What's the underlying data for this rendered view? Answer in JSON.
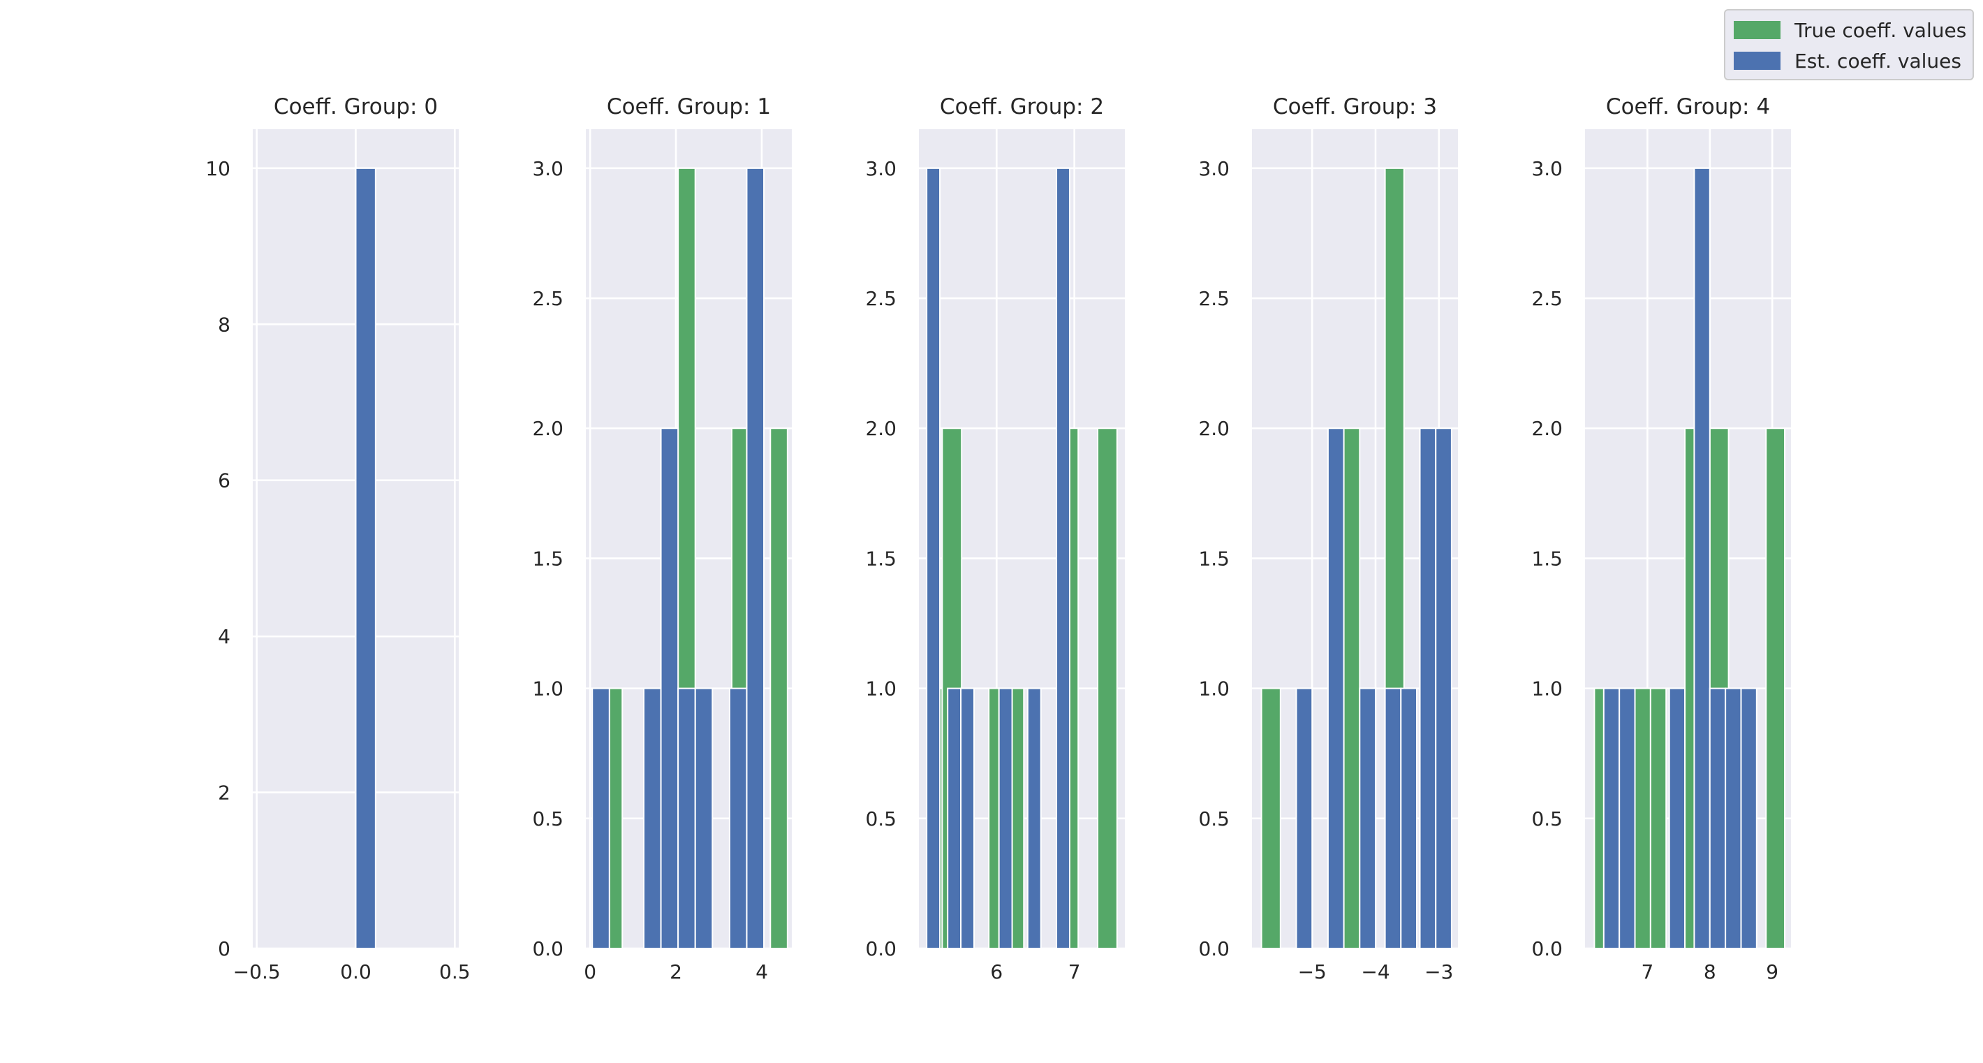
{
  "colors": {
    "true": "#55a868",
    "est": "#4c72b0",
    "background": "#eaeaf2"
  },
  "legend": {
    "placement": "top-right",
    "true_label": "True coeff. values",
    "est_label": "Est. coeff. values"
  },
  "chart_data": [
    {
      "type": "bar",
      "title": "Coeff. Group: 0",
      "xlabel": "",
      "ylabel": "",
      "xlim": [
        -0.52,
        0.52
      ],
      "ylim": [
        0,
        10.5
      ],
      "xticks": [
        -0.5,
        0.0,
        0.5
      ],
      "xtick_labels": [
        "−0.5",
        "0.0",
        "0.5"
      ],
      "yticks": [
        0,
        2,
        4,
        6,
        8,
        10
      ],
      "ytick_labels": [
        "0",
        "2",
        "4",
        "6",
        "8",
        "10"
      ],
      "grid": true,
      "series": [
        {
          "name": "True coeff. values",
          "color_key": "true",
          "bins": [
            {
              "x0": 0.0,
              "x1": 0.1,
              "value": 10
            }
          ]
        },
        {
          "name": "Est. coeff. values",
          "color_key": "est",
          "bins": [
            {
              "x0": 0.0,
              "x1": 0.1,
              "value": 10
            }
          ]
        }
      ]
    },
    {
      "type": "bar",
      "title": "Coeff. Group: 1",
      "xlabel": "",
      "ylabel": "",
      "xlim": [
        -0.1,
        4.7
      ],
      "ylim": [
        0,
        3.15
      ],
      "xticks": [
        0,
        2,
        4
      ],
      "xtick_labels": [
        "0",
        "2",
        "4"
      ],
      "yticks": [
        0.0,
        0.5,
        1.0,
        1.5,
        2.0,
        2.5,
        3.0
      ],
      "ytick_labels": [
        "0.0",
        "0.5",
        "1.0",
        "1.5",
        "2.0",
        "2.5",
        "3.0"
      ],
      "grid": true,
      "series": [
        {
          "name": "True coeff. values",
          "color_key": "true",
          "bins": [
            {
              "x0": 0.45,
              "x1": 0.75,
              "value": 1
            },
            {
              "x0": 2.05,
              "x1": 2.45,
              "value": 3
            },
            {
              "x0": 3.3,
              "x1": 3.65,
              "value": 2
            },
            {
              "x0": 4.2,
              "x1": 4.6,
              "value": 2
            }
          ]
        },
        {
          "name": "Est. coeff. values",
          "color_key": "est",
          "bins": [
            {
              "x0": 0.05,
              "x1": 0.45,
              "value": 1
            },
            {
              "x0": 1.25,
              "x1": 1.65,
              "value": 1
            },
            {
              "x0": 1.65,
              "x1": 2.05,
              "value": 2
            },
            {
              "x0": 2.05,
              "x1": 2.45,
              "value": 1
            },
            {
              "x0": 2.45,
              "x1": 2.85,
              "value": 1
            },
            {
              "x0": 3.25,
              "x1": 3.65,
              "value": 1
            },
            {
              "x0": 3.65,
              "x1": 4.05,
              "value": 3
            }
          ]
        }
      ]
    },
    {
      "type": "bar",
      "title": "Coeff. Group: 2",
      "xlabel": "",
      "ylabel": "",
      "xlim": [
        5.0,
        7.65
      ],
      "ylim": [
        0,
        3.15
      ],
      "xticks": [
        6,
        7
      ],
      "xtick_labels": [
        "6",
        "7"
      ],
      "yticks": [
        0.0,
        0.5,
        1.0,
        1.5,
        2.0,
        2.5,
        3.0
      ],
      "ytick_labels": [
        "0.0",
        "0.5",
        "1.0",
        "1.5",
        "2.0",
        "2.5",
        "3.0"
      ],
      "grid": true,
      "series": [
        {
          "name": "True coeff. values",
          "color_key": "true",
          "bins": [
            {
              "x0": 5.1,
              "x1": 5.3,
              "value": 1
            },
            {
              "x0": 5.3,
              "x1": 5.55,
              "value": 2
            },
            {
              "x0": 5.9,
              "x1": 6.1,
              "value": 1
            },
            {
              "x0": 6.1,
              "x1": 6.35,
              "value": 1
            },
            {
              "x0": 6.85,
              "x1": 7.05,
              "value": 2
            },
            {
              "x0": 7.3,
              "x1": 7.55,
              "value": 2
            }
          ]
        },
        {
          "name": "Est. coeff. values",
          "color_key": "est",
          "bins": [
            {
              "x0": 5.1,
              "x1": 5.27,
              "value": 3
            },
            {
              "x0": 5.37,
              "x1": 5.54,
              "value": 1
            },
            {
              "x0": 5.54,
              "x1": 5.71,
              "value": 1
            },
            {
              "x0": 6.03,
              "x1": 6.2,
              "value": 1
            },
            {
              "x0": 6.4,
              "x1": 6.57,
              "value": 1
            },
            {
              "x0": 6.77,
              "x1": 6.94,
              "value": 3
            }
          ]
        }
      ]
    },
    {
      "type": "bar",
      "title": "Coeff. Group: 3",
      "xlabel": "",
      "ylabel": "",
      "xlim": [
        -5.95,
        -2.7
      ],
      "ylim": [
        0,
        3.15
      ],
      "xticks": [
        -5,
        -4,
        -3
      ],
      "xtick_labels": [
        "−5",
        "−4",
        "−3"
      ],
      "yticks": [
        0.0,
        0.5,
        1.0,
        1.5,
        2.0,
        2.5,
        3.0
      ],
      "ytick_labels": [
        "0.0",
        "0.5",
        "1.0",
        "1.5",
        "2.0",
        "2.5",
        "3.0"
      ],
      "grid": true,
      "series": [
        {
          "name": "True coeff. values",
          "color_key": "true",
          "bins": [
            {
              "x0": -5.8,
              "x1": -5.5,
              "value": 1
            },
            {
              "x0": -4.55,
              "x1": -4.25,
              "value": 2
            },
            {
              "x0": -4.25,
              "x1": -4.1,
              "value": 1
            },
            {
              "x0": -3.85,
              "x1": -3.55,
              "value": 3
            }
          ]
        },
        {
          "name": "Est. coeff. values",
          "color_key": "est",
          "bins": [
            {
              "x0": -5.25,
              "x1": -5.0,
              "value": 1
            },
            {
              "x0": -4.75,
              "x1": -4.5,
              "value": 2
            },
            {
              "x0": -4.25,
              "x1": -4.0,
              "value": 1
            },
            {
              "x0": -3.85,
              "x1": -3.6,
              "value": 1
            },
            {
              "x0": -3.6,
              "x1": -3.35,
              "value": 1
            },
            {
              "x0": -3.3,
              "x1": -3.05,
              "value": 2
            },
            {
              "x0": -3.05,
              "x1": -2.8,
              "value": 2
            }
          ]
        }
      ]
    },
    {
      "type": "bar",
      "title": "Coeff. Group: 4",
      "xlabel": "",
      "ylabel": "",
      "xlim": [
        6.0,
        9.3
      ],
      "ylim": [
        0,
        3.15
      ],
      "xticks": [
        7,
        8,
        9
      ],
      "xtick_labels": [
        "7",
        "8",
        "9"
      ],
      "yticks": [
        0.0,
        0.5,
        1.0,
        1.5,
        2.0,
        2.5,
        3.0
      ],
      "ytick_labels": [
        "0.0",
        "0.5",
        "1.0",
        "1.5",
        "2.0",
        "2.5",
        "3.0"
      ],
      "grid": true,
      "series": [
        {
          "name": "True coeff. values",
          "color_key": "true",
          "bins": [
            {
              "x0": 6.15,
              "x1": 6.45,
              "value": 1
            },
            {
              "x0": 6.8,
              "x1": 7.05,
              "value": 1
            },
            {
              "x0": 7.05,
              "x1": 7.3,
              "value": 1
            },
            {
              "x0": 7.6,
              "x1": 7.75,
              "value": 2
            },
            {
              "x0": 8.0,
              "x1": 8.3,
              "value": 2
            },
            {
              "x0": 8.9,
              "x1": 9.2,
              "value": 2
            }
          ]
        },
        {
          "name": "Est. coeff. values",
          "color_key": "est",
          "bins": [
            {
              "x0": 6.3,
              "x1": 6.55,
              "value": 1
            },
            {
              "x0": 6.55,
              "x1": 6.8,
              "value": 1
            },
            {
              "x0": 7.35,
              "x1": 7.6,
              "value": 1
            },
            {
              "x0": 7.75,
              "x1": 8.0,
              "value": 3
            },
            {
              "x0": 8.0,
              "x1": 8.25,
              "value": 1
            },
            {
              "x0": 8.25,
              "x1": 8.5,
              "value": 1
            },
            {
              "x0": 8.5,
              "x1": 8.75,
              "value": 1
            }
          ]
        }
      ]
    }
  ]
}
